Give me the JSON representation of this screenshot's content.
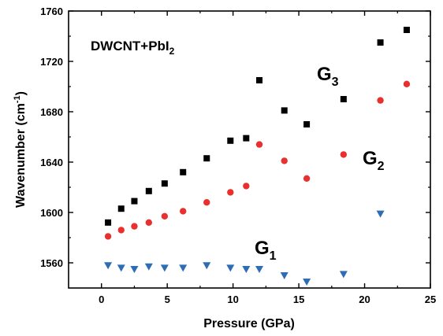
{
  "chart_data": {
    "type": "scatter",
    "title": "",
    "xlabel": "Pressure (GPa)",
    "ylabel_main": "Wavenumber (cm",
    "ylabel_sup": "-1",
    "ylabel_tail": ")",
    "xlim": [
      -2.5,
      25
    ],
    "ylim": [
      1540,
      1760
    ],
    "xticks": [
      0,
      5,
      10,
      15,
      20,
      25
    ],
    "yticks": [
      1560,
      1600,
      1640,
      1680,
      1720,
      1760
    ],
    "grid": false,
    "legend": "none",
    "annotation": {
      "main": "DWCNT+PbI",
      "sub": "2"
    },
    "series": [
      {
        "label_main": "G",
        "label_sub": "3",
        "marker": "square",
        "color": "#000000",
        "points": [
          [
            0.5,
            1592
          ],
          [
            1.5,
            1603
          ],
          [
            2.5,
            1609
          ],
          [
            3.6,
            1617
          ],
          [
            4.8,
            1623
          ],
          [
            6.2,
            1632
          ],
          [
            8.0,
            1643
          ],
          [
            9.8,
            1657
          ],
          [
            11.0,
            1659
          ],
          [
            12.0,
            1705
          ],
          [
            13.9,
            1681
          ],
          [
            15.6,
            1670
          ],
          [
            18.4,
            1690
          ],
          [
            21.2,
            1735
          ],
          [
            23.2,
            1745
          ]
        ]
      },
      {
        "label_main": "G",
        "label_sub": "2",
        "marker": "circle",
        "color": "#e8302f",
        "points": [
          [
            0.5,
            1581
          ],
          [
            1.5,
            1586
          ],
          [
            2.5,
            1589
          ],
          [
            3.6,
            1592
          ],
          [
            4.8,
            1597
          ],
          [
            6.2,
            1601
          ],
          [
            8.0,
            1608
          ],
          [
            9.8,
            1616
          ],
          [
            11.0,
            1621
          ],
          [
            12.0,
            1654
          ],
          [
            13.9,
            1641
          ],
          [
            15.6,
            1627
          ],
          [
            18.4,
            1646
          ],
          [
            21.2,
            1689
          ],
          [
            23.2,
            1702
          ]
        ]
      },
      {
        "label_main": "G",
        "label_sub": "1",
        "marker": "triangle-down",
        "color": "#2e6db4",
        "points": [
          [
            0.5,
            1558
          ],
          [
            1.5,
            1556
          ],
          [
            2.5,
            1555
          ],
          [
            3.6,
            1557
          ],
          [
            4.8,
            1556
          ],
          [
            6.2,
            1556
          ],
          [
            8.0,
            1558
          ],
          [
            9.8,
            1556
          ],
          [
            11.0,
            1555
          ],
          [
            12.0,
            1555
          ],
          [
            13.9,
            1550
          ],
          [
            15.6,
            1545
          ],
          [
            18.4,
            1551
          ],
          [
            21.2,
            1599
          ]
        ]
      }
    ]
  }
}
